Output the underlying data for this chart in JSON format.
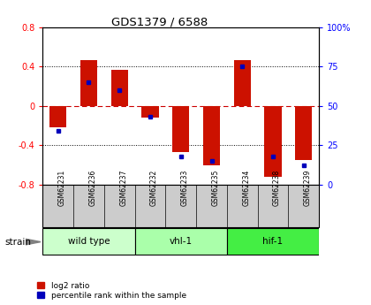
{
  "title": "GDS1379 / 6588",
  "samples": [
    "GSM62231",
    "GSM62236",
    "GSM62237",
    "GSM62232",
    "GSM62233",
    "GSM62235",
    "GSM62234",
    "GSM62238",
    "GSM62239"
  ],
  "log2_ratio": [
    -0.22,
    0.47,
    0.37,
    -0.12,
    -0.47,
    -0.6,
    0.47,
    -0.72,
    -0.55
  ],
  "percentile_rank": [
    34,
    65,
    60,
    43,
    18,
    15,
    75,
    18,
    12
  ],
  "groups": [
    {
      "label": "wild type",
      "indices": [
        0,
        1,
        2
      ],
      "color": "#ccffcc"
    },
    {
      "label": "vhl-1",
      "indices": [
        3,
        4,
        5
      ],
      "color": "#aaffaa"
    },
    {
      "label": "hif-1",
      "indices": [
        6,
        7,
        8
      ],
      "color": "#44ee44"
    }
  ],
  "ylim_left": [
    -0.8,
    0.8
  ],
  "ylim_right": [
    0,
    100
  ],
  "yticks_left": [
    -0.8,
    -0.4,
    0.0,
    0.4,
    0.8
  ],
  "yticks_right": [
    0,
    25,
    50,
    75,
    100
  ],
  "ytick_labels_right": [
    "0",
    "25",
    "50",
    "75",
    "100%"
  ],
  "bar_color": "#cc1100",
  "dot_color": "#0000bb",
  "zero_line_color": "#cc0000",
  "tick_bg_color": "#cccccc",
  "legend_items": [
    "log2 ratio",
    "percentile rank within the sample"
  ],
  "bar_width": 0.55
}
